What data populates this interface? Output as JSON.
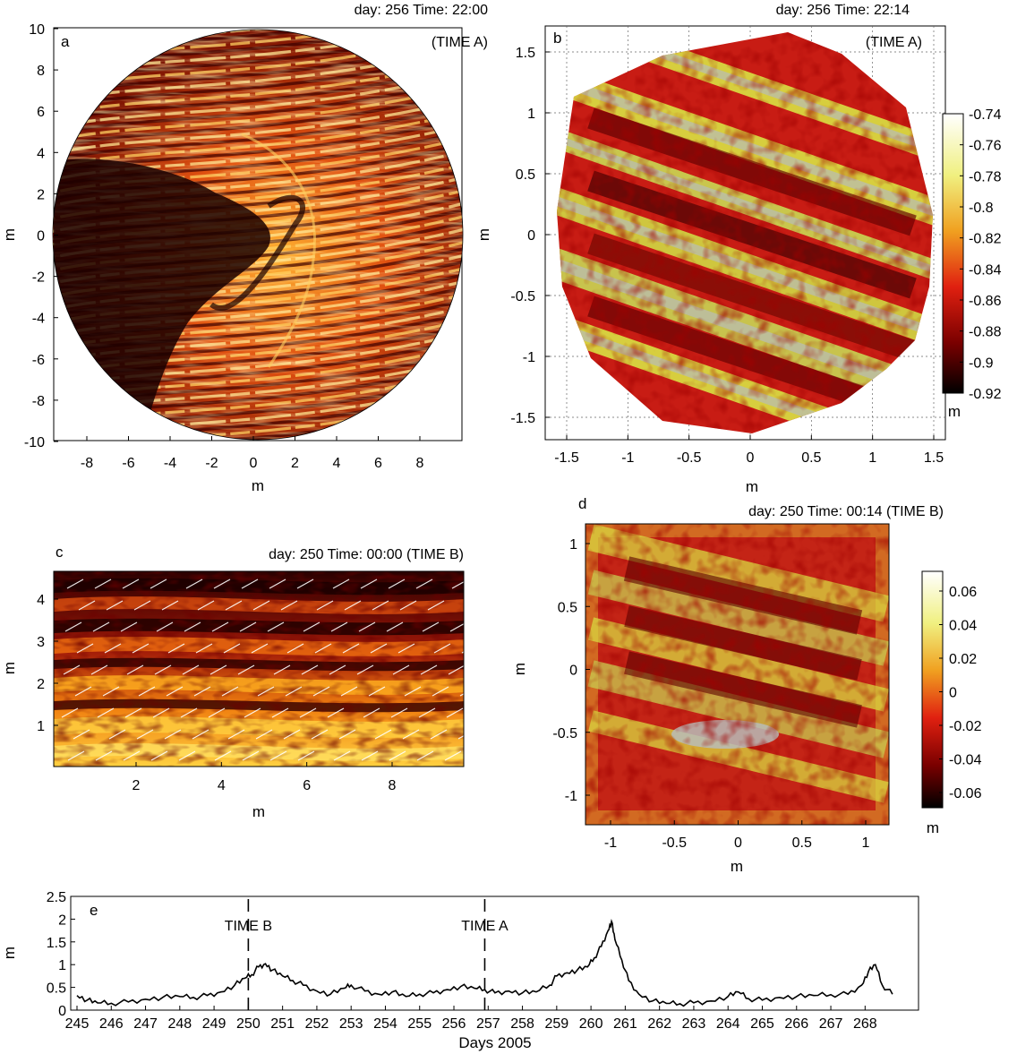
{
  "panels": {
    "a": {
      "letter": "a",
      "title": "day: 256 Time: 22:00",
      "subtitle": "(TIME A)",
      "xlabel": "m",
      "ylabel": "m",
      "xticks": [
        "-8",
        "-6",
        "-4",
        "-2",
        "0",
        "2",
        "4",
        "6",
        "8"
      ],
      "yticks": [
        "10",
        "8",
        "6",
        "4",
        "2",
        "0",
        "-2",
        "-4",
        "-6",
        "-8",
        "-10"
      ]
    },
    "b": {
      "letter": "b",
      "title": "day: 256  Time: 22:14",
      "subtitle": "(TIME A)",
      "xlabel": "m",
      "ylabel": "m",
      "xticks": [
        "-1.5",
        "-1",
        "-0.5",
        "0",
        "0.5",
        "1",
        "1.5"
      ],
      "yticks": [
        "1.5",
        "1",
        "0.5",
        "0",
        "-0.5",
        "-1",
        "-1.5"
      ],
      "colorbar_ticks": [
        "-0.74",
        "-0.76",
        "-0.78",
        "-0.8",
        "-0.82",
        "-0.84",
        "-0.86",
        "-0.88",
        "-0.9",
        "-0.92"
      ],
      "colorbar_unit": "m"
    },
    "c": {
      "letter": "c",
      "title": "day: 250 Time: 00:00 (TIME B)",
      "xlabel": "m",
      "ylabel": "m",
      "xticks": [
        "2",
        "4",
        "6",
        "8"
      ],
      "yticks": [
        "4",
        "3",
        "2",
        "1"
      ]
    },
    "d": {
      "letter": "d",
      "title": "day: 250  Time: 00:14 (TIME B)",
      "xlabel": "m",
      "ylabel": "m",
      "xticks": [
        "-1",
        "-0.5",
        "0",
        "0.5",
        "1"
      ],
      "yticks": [
        "1",
        "0.5",
        "0",
        "-0.5",
        "-1"
      ],
      "colorbar_ticks": [
        "0.06",
        "0.04",
        "0.02",
        "0",
        "-0.02",
        "-0.04",
        "-0.06"
      ],
      "colorbar_unit": "m"
    },
    "e": {
      "letter": "e",
      "xlabel": "Days 2005",
      "ylabel": "m",
      "marker_b": "TIME B",
      "marker_a": "TIME A"
    }
  },
  "colors": {
    "dark": "#1a0000",
    "red": "#c81c14",
    "orange": "#e85a10",
    "yellow": "#d8d840",
    "light": "#f2f2e6",
    "gray": "#b8bcb8"
  },
  "chart_data": {
    "type": "line",
    "xlabel": "Days 2005",
    "ylabel": "m",
    "xlim": [
      245,
      269
    ],
    "ylim": [
      0,
      2.5
    ],
    "xticks": [
      245,
      246,
      247,
      248,
      249,
      250,
      251,
      252,
      253,
      254,
      255,
      256,
      257,
      258,
      259,
      260,
      261,
      262,
      263,
      264,
      265,
      266,
      267,
      268
    ],
    "yticks": [
      0,
      0.5,
      1,
      1.5,
      2,
      2.5
    ],
    "markers": [
      {
        "label": "TIME B",
        "x": 250.0
      },
      {
        "label": "TIME A",
        "x": 256.9
      }
    ],
    "series": [
      {
        "x": [
          245.0,
          245.3,
          245.6,
          246.0,
          246.5,
          247.0,
          247.5,
          248.0,
          248.4,
          248.8,
          249.2,
          249.6,
          249.9,
          250.1,
          250.3,
          250.5,
          250.7,
          251.0,
          251.3,
          251.6,
          252.0,
          252.4,
          252.8,
          253.0,
          253.4,
          253.8,
          254.2,
          254.6,
          255.0,
          255.4,
          255.8,
          256.2,
          256.6,
          256.9,
          257.2,
          257.6,
          258.0,
          258.4,
          258.8,
          259.0,
          259.3,
          259.6,
          259.9,
          260.1,
          260.3,
          260.5,
          260.6,
          260.7,
          260.9,
          261.1,
          261.4,
          261.8,
          262.2,
          262.6,
          263.0,
          263.5,
          264.0,
          264.3,
          264.6,
          265.0,
          265.5,
          266.0,
          266.5,
          267.0,
          267.5,
          267.9,
          268.1,
          268.3,
          268.5,
          268.8
        ],
        "y": [
          0.32,
          0.22,
          0.16,
          0.15,
          0.18,
          0.24,
          0.28,
          0.3,
          0.28,
          0.32,
          0.4,
          0.55,
          0.7,
          0.78,
          0.95,
          1.02,
          0.88,
          0.75,
          0.65,
          0.55,
          0.42,
          0.35,
          0.48,
          0.55,
          0.42,
          0.35,
          0.4,
          0.3,
          0.35,
          0.38,
          0.45,
          0.52,
          0.48,
          0.45,
          0.38,
          0.42,
          0.38,
          0.4,
          0.55,
          0.75,
          0.82,
          0.88,
          0.95,
          1.15,
          1.4,
          1.75,
          1.95,
          1.55,
          1.1,
          0.65,
          0.35,
          0.2,
          0.15,
          0.14,
          0.16,
          0.2,
          0.3,
          0.4,
          0.25,
          0.22,
          0.28,
          0.3,
          0.32,
          0.34,
          0.35,
          0.55,
          0.85,
          1.0,
          0.55,
          0.35
        ]
      }
    ]
  }
}
